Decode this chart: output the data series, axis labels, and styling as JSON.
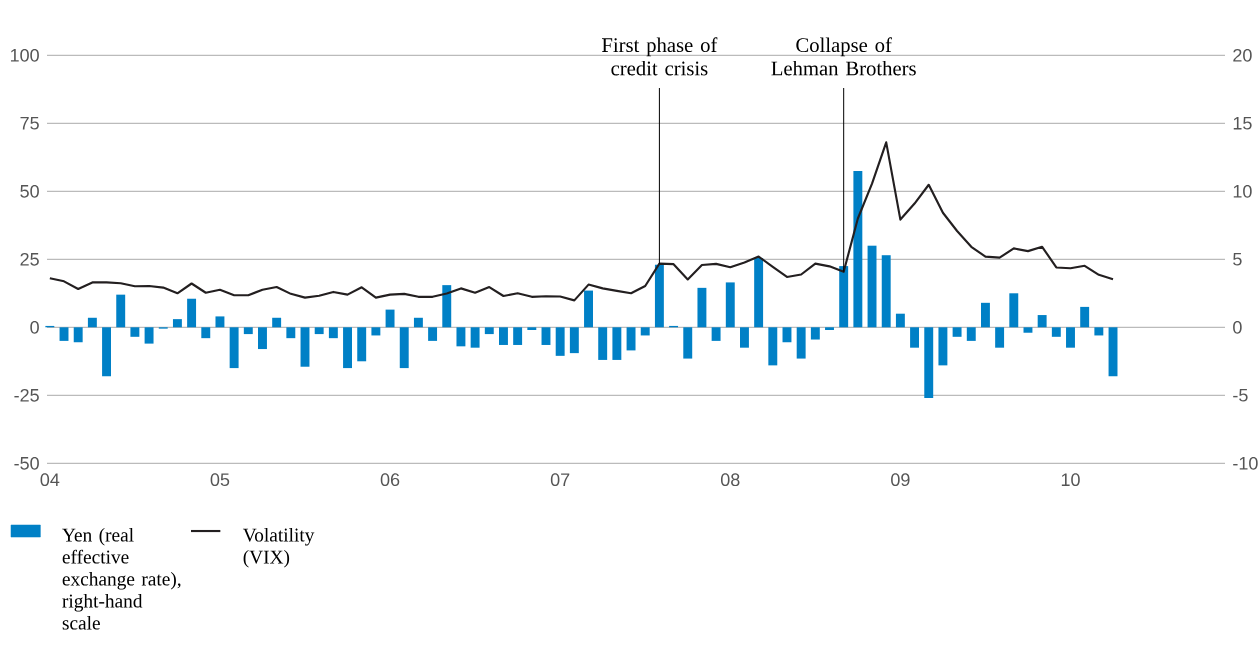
{
  "chart_data": {
    "type": "bar",
    "x": [
      "2004-01",
      "2004-02",
      "2004-03",
      "2004-04",
      "2004-05",
      "2004-06",
      "2004-07",
      "2004-08",
      "2004-09",
      "2004-10",
      "2004-11",
      "2004-12",
      "2005-01",
      "2005-02",
      "2005-03",
      "2005-04",
      "2005-05",
      "2005-06",
      "2005-07",
      "2005-08",
      "2005-09",
      "2005-10",
      "2005-11",
      "2005-12",
      "2006-01",
      "2006-02",
      "2006-03",
      "2006-04",
      "2006-05",
      "2006-06",
      "2006-07",
      "2006-08",
      "2006-09",
      "2006-10",
      "2006-11",
      "2006-12",
      "2007-01",
      "2007-02",
      "2007-03",
      "2007-04",
      "2007-05",
      "2007-06",
      "2007-07",
      "2007-08",
      "2007-09",
      "2007-10",
      "2007-11",
      "2007-12",
      "2008-01",
      "2008-02",
      "2008-03",
      "2008-04",
      "2008-05",
      "2008-06",
      "2008-07",
      "2008-08",
      "2008-09",
      "2008-10",
      "2008-11",
      "2008-12",
      "2009-01",
      "2009-02",
      "2009-03",
      "2009-04",
      "2009-05",
      "2009-06",
      "2009-07",
      "2009-08",
      "2009-09",
      "2009-10",
      "2009-11",
      "2009-12",
      "2010-01",
      "2010-02",
      "2010-03",
      "2010-04"
    ],
    "series": [
      {
        "name": "Yen (real effective exchange rate), right-hand scale",
        "axis": "y2",
        "color": "#0080c6",
        "values": [
          0.1,
          -1.0,
          -1.1,
          0.7,
          -3.6,
          2.4,
          -0.7,
          -1.2,
          -0.1,
          0.6,
          2.1,
          -0.8,
          0.8,
          -3.0,
          -0.5,
          -1.6,
          0.7,
          -0.8,
          -2.9,
          -0.5,
          -0.8,
          -3.0,
          -2.5,
          -0.6,
          1.3,
          -3.0,
          0.7,
          -1.0,
          3.1,
          -1.4,
          -1.5,
          -0.5,
          -1.3,
          -1.3,
          -0.2,
          -1.3,
          -2.1,
          -1.9,
          2.7,
          -2.4,
          -2.4,
          -1.7,
          -0.6,
          4.6,
          0.1,
          -2.3,
          2.9,
          -1.0,
          3.3,
          -1.5,
          5.1,
          -2.8,
          -1.1,
          -2.3,
          -0.9,
          -0.2,
          4.5,
          11.5,
          6.0,
          5.3,
          1.0,
          -1.5,
          -5.2,
          -2.8,
          -0.7,
          -1.0,
          1.8,
          -1.5,
          2.5,
          -0.4,
          0.9,
          -0.7,
          -1.5,
          1.5,
          -0.6,
          -3.6
        ]
      },
      {
        "name": "Volatility (VIX)",
        "type": "line",
        "color": "#231f20",
        "values": [
          18.0,
          16.9,
          14.1,
          16.5,
          16.5,
          16.2,
          15.1,
          15.2,
          14.6,
          12.5,
          16.1,
          12.7,
          13.8,
          11.8,
          11.8,
          13.8,
          14.8,
          12.3,
          10.9,
          11.6,
          13.0,
          12.0,
          14.7,
          10.9,
          12.0,
          12.3,
          11.2,
          11.2,
          12.4,
          14.3,
          12.7,
          14.8,
          11.5,
          12.5,
          11.2,
          11.4,
          11.3,
          9.9,
          15.7,
          14.3,
          13.4,
          12.5,
          15.2,
          23.4,
          23.2,
          17.6,
          22.9,
          23.3,
          22.1,
          23.8,
          26.0,
          22.2,
          18.5,
          19.4,
          23.4,
          22.4,
          20.4,
          40.0,
          52.8,
          68.0,
          39.6,
          45.5,
          52.4,
          42.1,
          35.4,
          29.6,
          26.0,
          25.6,
          29.0,
          28.0,
          29.6,
          22.0,
          21.7,
          22.6,
          19.3,
          17.7
        ]
      }
    ],
    "xlim": [
      "2003-12-25",
      "2010-11-28"
    ],
    "xticks": [
      {
        "value": "2004-01",
        "label": "04"
      },
      {
        "value": "2005-01",
        "label": "05"
      },
      {
        "value": "2006-01",
        "label": "06"
      },
      {
        "value": "2007-01",
        "label": "07"
      },
      {
        "value": "2008-01",
        "label": "08"
      },
      {
        "value": "2009-01",
        "label": "09"
      },
      {
        "value": "2010-01",
        "label": "10"
      }
    ],
    "ylim": [
      -50,
      100
    ],
    "yticks": [
      -50,
      -25,
      0,
      25,
      50,
      75,
      100
    ],
    "y2lim": [
      -10,
      20
    ],
    "y2ticks": [
      -10,
      -5,
      0,
      5,
      10,
      15,
      20
    ],
    "ref_lines": [
      {
        "axis": "x",
        "value": "2007-08",
        "label": "First phase of credit crisis",
        "color": "#000000"
      },
      {
        "axis": "x",
        "value": "2008-09",
        "label": "Collapse of Lehman Brothers",
        "color": "#000000"
      }
    ],
    "grid": "y",
    "legend": "bottom left"
  }
}
